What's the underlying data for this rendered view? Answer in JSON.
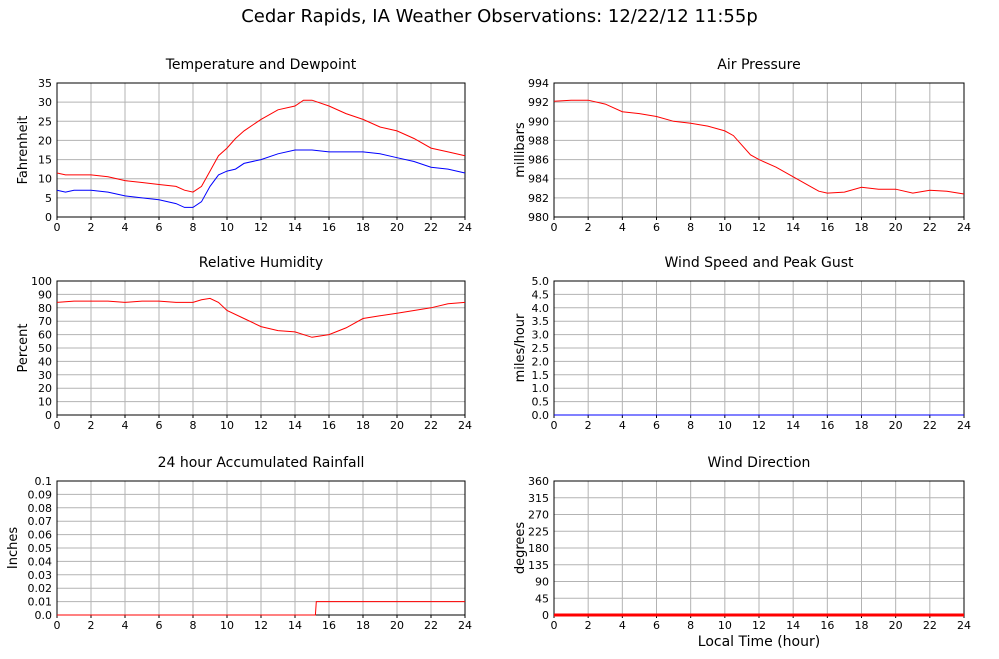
{
  "page": {
    "title": "Cedar Rapids, IA Weather Observations: 12/22/12 11:55p",
    "xlabel": "Local Time (hour)"
  },
  "colors": {
    "red": "#ff0000",
    "blue": "#0000ff",
    "grid": "#b3b3b3",
    "frame": "#000000"
  },
  "chart_data": [
    {
      "id": "temp",
      "type": "line",
      "title": "Temperature and Dewpoint",
      "xlabel": "",
      "ylabel": "Fahrenheit",
      "xlim": [
        0,
        24
      ],
      "ylim": [
        0,
        35
      ],
      "xticks": [
        0,
        2,
        4,
        6,
        8,
        10,
        12,
        14,
        16,
        18,
        20,
        22,
        24
      ],
      "yticks": [
        0,
        5,
        10,
        15,
        20,
        25,
        30,
        35
      ],
      "grid": true,
      "series": [
        {
          "color": "#ff0000",
          "x": [
            0,
            0.5,
            1,
            2,
            3,
            4,
            5,
            6,
            7,
            7.5,
            8,
            8.5,
            9,
            9.5,
            10,
            10.5,
            11,
            12,
            13,
            14,
            14.5,
            15,
            16,
            17,
            18,
            19,
            20,
            21,
            22,
            23,
            24
          ],
          "y": [
            11.5,
            11,
            11,
            11,
            10.5,
            9.5,
            9,
            8.5,
            8,
            7,
            6.5,
            8,
            12,
            16,
            18,
            20.5,
            22.5,
            25.5,
            28,
            29,
            30.5,
            30.5,
            29,
            27,
            25.5,
            23.5,
            22.5,
            20.5,
            18,
            17,
            16
          ]
        },
        {
          "color": "#0000ff",
          "x": [
            0,
            0.5,
            1,
            2,
            3,
            4,
            5,
            6,
            7,
            7.5,
            8,
            8.5,
            9,
            9.5,
            10,
            10.5,
            11,
            12,
            13,
            14,
            15,
            16,
            17,
            18,
            19,
            20,
            21,
            22,
            23,
            24
          ],
          "y": [
            7,
            6.5,
            7,
            7,
            6.5,
            5.5,
            5,
            4.5,
            3.5,
            2.5,
            2.5,
            4,
            8,
            11,
            12,
            12.5,
            14,
            15,
            16.5,
            17.5,
            17.5,
            17,
            17,
            17,
            16.5,
            15.5,
            14.5,
            13,
            12.5,
            11.5
          ]
        }
      ]
    },
    {
      "id": "pressure",
      "type": "line",
      "title": "Air Pressure",
      "xlabel": "",
      "ylabel": "millibars",
      "xlim": [
        0,
        24
      ],
      "ylim": [
        980,
        994
      ],
      "xticks": [
        0,
        2,
        4,
        6,
        8,
        10,
        12,
        14,
        16,
        18,
        20,
        22,
        24
      ],
      "yticks": [
        980,
        982,
        984,
        986,
        988,
        990,
        992,
        994
      ],
      "grid": true,
      "series": [
        {
          "color": "#ff0000",
          "x": [
            0,
            1,
            2,
            3,
            4,
            5,
            6,
            7,
            8,
            9,
            10,
            10.5,
            11,
            11.5,
            12,
            13,
            14,
            15,
            15.5,
            16,
            17,
            18,
            19,
            20,
            21,
            22,
            23,
            24
          ],
          "y": [
            992.1,
            992.2,
            992.2,
            991.8,
            991,
            990.8,
            990.5,
            990,
            989.8,
            989.5,
            989,
            988.5,
            987.5,
            986.5,
            986,
            985.2,
            984.2,
            983.2,
            982.7,
            982.5,
            982.6,
            983.1,
            982.9,
            982.9,
            982.5,
            982.8,
            982.7,
            982.4
          ]
        }
      ]
    },
    {
      "id": "humidity",
      "type": "line",
      "title": "Relative Humidity",
      "xlabel": "",
      "ylabel": "Percent",
      "xlim": [
        0,
        24
      ],
      "ylim": [
        0,
        100
      ],
      "xticks": [
        0,
        2,
        4,
        6,
        8,
        10,
        12,
        14,
        16,
        18,
        20,
        22,
        24
      ],
      "yticks": [
        0,
        10,
        20,
        30,
        40,
        50,
        60,
        70,
        80,
        90,
        100
      ],
      "grid": true,
      "series": [
        {
          "color": "#ff0000",
          "x": [
            0,
            1,
            2,
            3,
            4,
            5,
            6,
            7,
            8,
            8.5,
            9,
            9.5,
            10,
            11,
            12,
            13,
            14,
            15,
            16,
            17,
            18,
            19,
            20,
            21,
            22,
            23,
            24
          ],
          "y": [
            84,
            85,
            85,
            85,
            84,
            85,
            85,
            84,
            84,
            86,
            87,
            84,
            78,
            72,
            66,
            63,
            62,
            58,
            60,
            65,
            72,
            74,
            76,
            78,
            80,
            83,
            84
          ]
        }
      ]
    },
    {
      "id": "wind",
      "type": "line",
      "title": "Wind Speed and Peak Gust",
      "xlabel": "",
      "ylabel": "miles/hour",
      "xlim": [
        0,
        24
      ],
      "ylim": [
        0,
        5
      ],
      "xticks": [
        0,
        2,
        4,
        6,
        8,
        10,
        12,
        14,
        16,
        18,
        20,
        22,
        24
      ],
      "yticks": [
        0,
        0.5,
        1,
        1.5,
        2,
        2.5,
        3,
        3.5,
        4,
        4.5,
        5
      ],
      "ytick_labels": [
        "0.0",
        "0.5",
        "1.0",
        "1.5",
        "2.0",
        "2.5",
        "3.0",
        "3.5",
        "4.0",
        "4.5",
        "5.0"
      ],
      "grid": true,
      "series": [
        {
          "color": "#0000ff",
          "x": [
            0,
            24
          ],
          "y": [
            0,
            0
          ]
        }
      ]
    },
    {
      "id": "rain",
      "type": "line",
      "title": "24 hour Accumulated Rainfall",
      "xlabel": "",
      "ylabel": "Inches",
      "xlim": [
        0,
        24
      ],
      "ylim": [
        0,
        0.1
      ],
      "xticks": [
        0,
        2,
        4,
        6,
        8,
        10,
        12,
        14,
        16,
        18,
        20,
        22,
        24
      ],
      "yticks": [
        0,
        0.01,
        0.02,
        0.03,
        0.04,
        0.05,
        0.06,
        0.07,
        0.08,
        0.09,
        0.1
      ],
      "ytick_labels": [
        "0.0",
        "0.01",
        "0.02",
        "0.03",
        "0.04",
        "0.05",
        "0.06",
        "0.07",
        "0.08",
        "0.09",
        "0.1"
      ],
      "grid": true,
      "series": [
        {
          "color": "#ff0000",
          "x": [
            0,
            15.2,
            15.25,
            24
          ],
          "y": [
            0,
            0,
            0.01,
            0.01
          ]
        }
      ]
    },
    {
      "id": "winddir",
      "type": "scatter",
      "title": "Wind Direction",
      "xlabel": "",
      "ylabel": "degrees",
      "xlim": [
        0,
        24
      ],
      "ylim": [
        0,
        360
      ],
      "xticks": [
        0,
        2,
        4,
        6,
        8,
        10,
        12,
        14,
        16,
        18,
        20,
        22,
        24
      ],
      "yticks": [
        0,
        45,
        90,
        135,
        180,
        225,
        270,
        315,
        360
      ],
      "grid": true,
      "series": [
        {
          "color": "#ff0000",
          "x": [
            0,
            24
          ],
          "y": [
            0,
            0
          ]
        }
      ]
    }
  ]
}
